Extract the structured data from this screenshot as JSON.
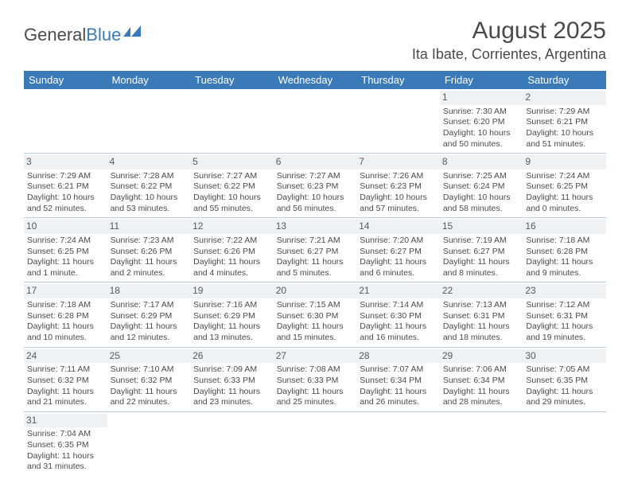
{
  "logo": {
    "text1": "General",
    "text2": "Blue"
  },
  "title": "August 2025",
  "location": "Ita Ibate, Corrientes, Argentina",
  "colors": {
    "header_bg": "#3a7ab8",
    "header_text": "#ffffff",
    "daynum_bg": "#eef2f5",
    "text": "#4a4a4a",
    "row_border": "#b9cde0"
  },
  "weekdays": [
    "Sunday",
    "Monday",
    "Tuesday",
    "Wednesday",
    "Thursday",
    "Friday",
    "Saturday"
  ],
  "weeks": [
    [
      {
        "n": "",
        "sr": "",
        "ss": "",
        "dl": ""
      },
      {
        "n": "",
        "sr": "",
        "ss": "",
        "dl": ""
      },
      {
        "n": "",
        "sr": "",
        "ss": "",
        "dl": ""
      },
      {
        "n": "",
        "sr": "",
        "ss": "",
        "dl": ""
      },
      {
        "n": "",
        "sr": "",
        "ss": "",
        "dl": ""
      },
      {
        "n": "1",
        "sr": "Sunrise: 7:30 AM",
        "ss": "Sunset: 6:20 PM",
        "dl": "Daylight: 10 hours and 50 minutes."
      },
      {
        "n": "2",
        "sr": "Sunrise: 7:29 AM",
        "ss": "Sunset: 6:21 PM",
        "dl": "Daylight: 10 hours and 51 minutes."
      }
    ],
    [
      {
        "n": "3",
        "sr": "Sunrise: 7:29 AM",
        "ss": "Sunset: 6:21 PM",
        "dl": "Daylight: 10 hours and 52 minutes."
      },
      {
        "n": "4",
        "sr": "Sunrise: 7:28 AM",
        "ss": "Sunset: 6:22 PM",
        "dl": "Daylight: 10 hours and 53 minutes."
      },
      {
        "n": "5",
        "sr": "Sunrise: 7:27 AM",
        "ss": "Sunset: 6:22 PM",
        "dl": "Daylight: 10 hours and 55 minutes."
      },
      {
        "n": "6",
        "sr": "Sunrise: 7:27 AM",
        "ss": "Sunset: 6:23 PM",
        "dl": "Daylight: 10 hours and 56 minutes."
      },
      {
        "n": "7",
        "sr": "Sunrise: 7:26 AM",
        "ss": "Sunset: 6:23 PM",
        "dl": "Daylight: 10 hours and 57 minutes."
      },
      {
        "n": "8",
        "sr": "Sunrise: 7:25 AM",
        "ss": "Sunset: 6:24 PM",
        "dl": "Daylight: 10 hours and 58 minutes."
      },
      {
        "n": "9",
        "sr": "Sunrise: 7:24 AM",
        "ss": "Sunset: 6:25 PM",
        "dl": "Daylight: 11 hours and 0 minutes."
      }
    ],
    [
      {
        "n": "10",
        "sr": "Sunrise: 7:24 AM",
        "ss": "Sunset: 6:25 PM",
        "dl": "Daylight: 11 hours and 1 minute."
      },
      {
        "n": "11",
        "sr": "Sunrise: 7:23 AM",
        "ss": "Sunset: 6:26 PM",
        "dl": "Daylight: 11 hours and 2 minutes."
      },
      {
        "n": "12",
        "sr": "Sunrise: 7:22 AM",
        "ss": "Sunset: 6:26 PM",
        "dl": "Daylight: 11 hours and 4 minutes."
      },
      {
        "n": "13",
        "sr": "Sunrise: 7:21 AM",
        "ss": "Sunset: 6:27 PM",
        "dl": "Daylight: 11 hours and 5 minutes."
      },
      {
        "n": "14",
        "sr": "Sunrise: 7:20 AM",
        "ss": "Sunset: 6:27 PM",
        "dl": "Daylight: 11 hours and 6 minutes."
      },
      {
        "n": "15",
        "sr": "Sunrise: 7:19 AM",
        "ss": "Sunset: 6:27 PM",
        "dl": "Daylight: 11 hours and 8 minutes."
      },
      {
        "n": "16",
        "sr": "Sunrise: 7:18 AM",
        "ss": "Sunset: 6:28 PM",
        "dl": "Daylight: 11 hours and 9 minutes."
      }
    ],
    [
      {
        "n": "17",
        "sr": "Sunrise: 7:18 AM",
        "ss": "Sunset: 6:28 PM",
        "dl": "Daylight: 11 hours and 10 minutes."
      },
      {
        "n": "18",
        "sr": "Sunrise: 7:17 AM",
        "ss": "Sunset: 6:29 PM",
        "dl": "Daylight: 11 hours and 12 minutes."
      },
      {
        "n": "19",
        "sr": "Sunrise: 7:16 AM",
        "ss": "Sunset: 6:29 PM",
        "dl": "Daylight: 11 hours and 13 minutes."
      },
      {
        "n": "20",
        "sr": "Sunrise: 7:15 AM",
        "ss": "Sunset: 6:30 PM",
        "dl": "Daylight: 11 hours and 15 minutes."
      },
      {
        "n": "21",
        "sr": "Sunrise: 7:14 AM",
        "ss": "Sunset: 6:30 PM",
        "dl": "Daylight: 11 hours and 16 minutes."
      },
      {
        "n": "22",
        "sr": "Sunrise: 7:13 AM",
        "ss": "Sunset: 6:31 PM",
        "dl": "Daylight: 11 hours and 18 minutes."
      },
      {
        "n": "23",
        "sr": "Sunrise: 7:12 AM",
        "ss": "Sunset: 6:31 PM",
        "dl": "Daylight: 11 hours and 19 minutes."
      }
    ],
    [
      {
        "n": "24",
        "sr": "Sunrise: 7:11 AM",
        "ss": "Sunset: 6:32 PM",
        "dl": "Daylight: 11 hours and 21 minutes."
      },
      {
        "n": "25",
        "sr": "Sunrise: 7:10 AM",
        "ss": "Sunset: 6:32 PM",
        "dl": "Daylight: 11 hours and 22 minutes."
      },
      {
        "n": "26",
        "sr": "Sunrise: 7:09 AM",
        "ss": "Sunset: 6:33 PM",
        "dl": "Daylight: 11 hours and 23 minutes."
      },
      {
        "n": "27",
        "sr": "Sunrise: 7:08 AM",
        "ss": "Sunset: 6:33 PM",
        "dl": "Daylight: 11 hours and 25 minutes."
      },
      {
        "n": "28",
        "sr": "Sunrise: 7:07 AM",
        "ss": "Sunset: 6:34 PM",
        "dl": "Daylight: 11 hours and 26 minutes."
      },
      {
        "n": "29",
        "sr": "Sunrise: 7:06 AM",
        "ss": "Sunset: 6:34 PM",
        "dl": "Daylight: 11 hours and 28 minutes."
      },
      {
        "n": "30",
        "sr": "Sunrise: 7:05 AM",
        "ss": "Sunset: 6:35 PM",
        "dl": "Daylight: 11 hours and 29 minutes."
      }
    ],
    [
      {
        "n": "31",
        "sr": "Sunrise: 7:04 AM",
        "ss": "Sunset: 6:35 PM",
        "dl": "Daylight: 11 hours and 31 minutes."
      },
      {
        "n": "",
        "sr": "",
        "ss": "",
        "dl": ""
      },
      {
        "n": "",
        "sr": "",
        "ss": "",
        "dl": ""
      },
      {
        "n": "",
        "sr": "",
        "ss": "",
        "dl": ""
      },
      {
        "n": "",
        "sr": "",
        "ss": "",
        "dl": ""
      },
      {
        "n": "",
        "sr": "",
        "ss": "",
        "dl": ""
      },
      {
        "n": "",
        "sr": "",
        "ss": "",
        "dl": ""
      }
    ]
  ]
}
